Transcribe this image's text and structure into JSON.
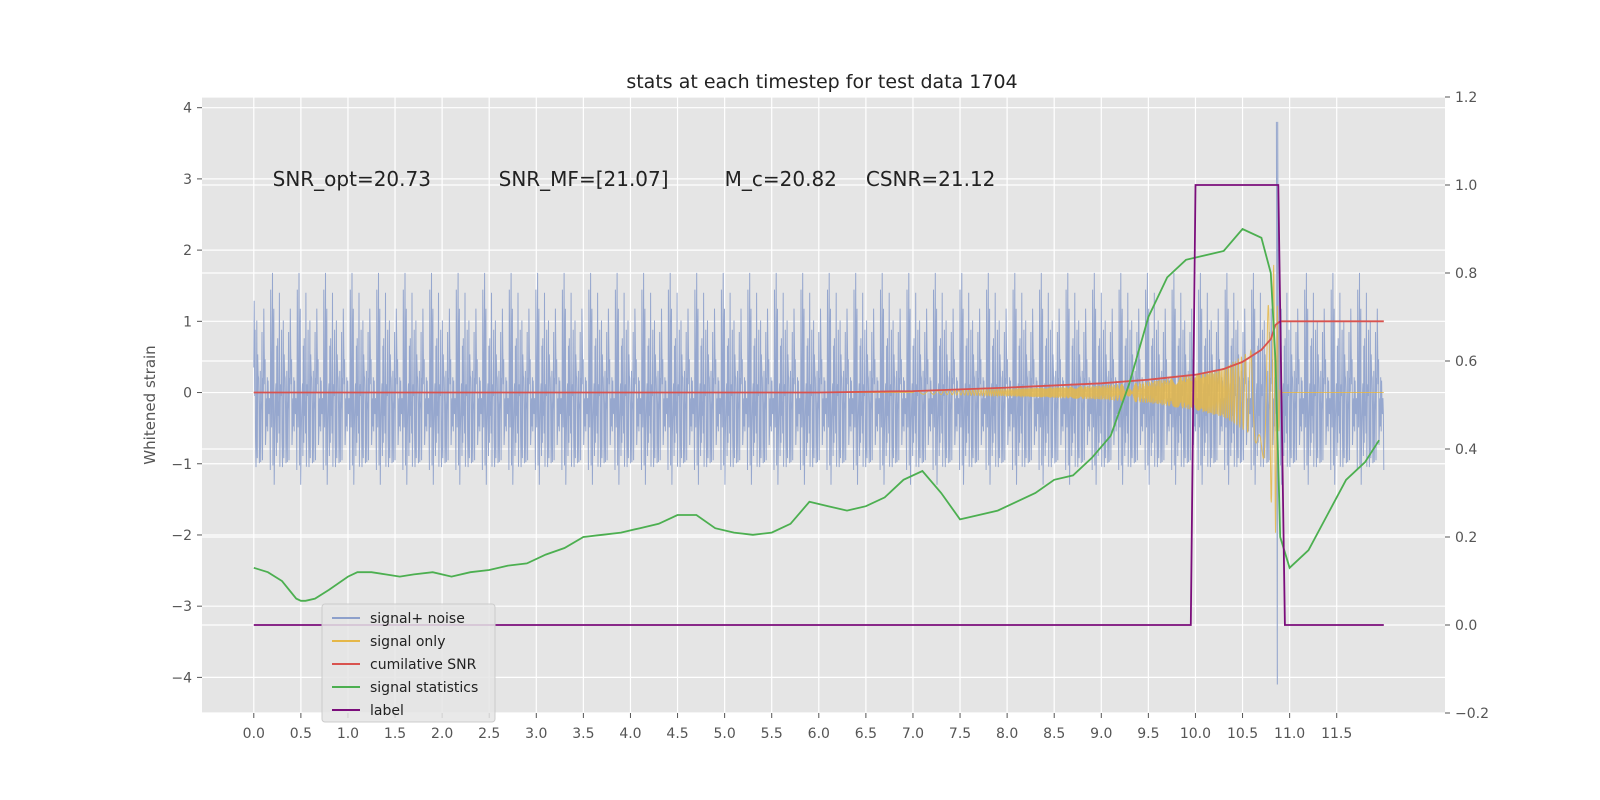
{
  "chart_data": {
    "type": "line",
    "title": "stats at each timestep for test data 1704",
    "ylabel": "Whitened strain",
    "xlabel": "",
    "xlim": [
      -0.55,
      12.65
    ],
    "ylim": [
      -4.5,
      4.15
    ],
    "y2lim": [
      -0.2,
      1.2
    ],
    "x_ticks": [
      "0.0",
      "0.5",
      "1.0",
      "1.5",
      "2.0",
      "2.5",
      "3.0",
      "3.5",
      "4.0",
      "4.5",
      "5.0",
      "5.5",
      "6.0",
      "6.5",
      "7.0",
      "7.5",
      "8.0",
      "8.5",
      "9.0",
      "9.5",
      "10.0",
      "10.5",
      "11.0",
      "11.5"
    ],
    "y_ticks": [
      4,
      3,
      2,
      1,
      0,
      -1,
      -2,
      -3,
      -4
    ],
    "y_tick_labels": [
      "4",
      "3",
      "2",
      "1",
      "0",
      "−1",
      "−2",
      "−3",
      "−4"
    ],
    "y2_ticks": [
      1.2,
      1.0,
      0.8,
      0.6,
      0.4,
      0.2,
      0.0,
      -0.2
    ],
    "y2_tick_labels": [
      "1.2",
      "1.0",
      "0.8",
      "0.6",
      "0.4",
      "0.2",
      "0.0",
      "−0.2"
    ],
    "grid": true,
    "legend_position": "lower-left",
    "annotations": [
      {
        "text": "SNR_opt=20.73",
        "x": 0.2,
        "y": 3.0
      },
      {
        "text": "SNR_MF=[21.07]",
        "x": 2.6,
        "y": 3.0
      },
      {
        "text": "M_c=20.82",
        "x": 5.0,
        "y": 3.0
      },
      {
        "text": "CSNR=21.12",
        "x": 6.5,
        "y": 3.0
      }
    ],
    "series": [
      {
        "name": "signal+ noise",
        "axis": "left",
        "color": "#8da0cb",
        "noise_band": [
          -1.6,
          1.6
        ],
        "max_peak": [
          10.87,
          3.8
        ],
        "min_peak": [
          10.87,
          -4.1
        ]
      },
      {
        "name": "signal only",
        "axis": "left",
        "color": "#e5b748",
        "envelope": [
          [
            7.0,
            0.02
          ],
          [
            8.0,
            0.05
          ],
          [
            9.0,
            0.1
          ],
          [
            9.5,
            0.15
          ],
          [
            10.0,
            0.25
          ],
          [
            10.3,
            0.35
          ],
          [
            10.6,
            0.6
          ],
          [
            10.75,
            1.0
          ],
          [
            10.85,
            2.0
          ],
          [
            10.9,
            0.0
          ]
        ]
      },
      {
        "name": "cumilative SNR",
        "axis": "left",
        "color": "#d9534f",
        "x": [
          0.0,
          6.0,
          7.0,
          8.0,
          9.0,
          9.5,
          10.0,
          10.3,
          10.5,
          10.7,
          10.8,
          10.85,
          10.9,
          12.0
        ],
        "y": [
          0.0,
          0.0,
          0.02,
          0.07,
          0.13,
          0.18,
          0.25,
          0.33,
          0.43,
          0.6,
          0.75,
          0.95,
          1.0,
          1.0
        ]
      },
      {
        "name": "signal statistics",
        "axis": "right",
        "color": "#4caf50",
        "x": [
          0.0,
          0.15,
          0.3,
          0.45,
          0.5,
          0.55,
          0.65,
          0.8,
          1.0,
          1.1,
          1.25,
          1.4,
          1.55,
          1.7,
          1.9,
          2.1,
          2.3,
          2.5,
          2.7,
          2.9,
          3.1,
          3.3,
          3.5,
          3.7,
          3.9,
          4.1,
          4.3,
          4.5,
          4.7,
          4.9,
          5.1,
          5.3,
          5.5,
          5.7,
          5.9,
          6.1,
          6.3,
          6.5,
          6.7,
          6.9,
          7.1,
          7.3,
          7.5,
          7.7,
          7.9,
          8.1,
          8.3,
          8.5,
          8.7,
          8.9,
          9.1,
          9.3,
          9.5,
          9.7,
          9.9,
          10.1,
          10.3,
          10.5,
          10.7,
          10.8,
          10.85,
          10.9,
          11.0,
          11.2,
          11.4,
          11.6,
          11.8,
          11.95
        ],
        "y": [
          0.13,
          0.12,
          0.1,
          0.06,
          0.055,
          0.055,
          0.06,
          0.08,
          0.11,
          0.12,
          0.12,
          0.115,
          0.11,
          0.115,
          0.12,
          0.11,
          0.12,
          0.125,
          0.135,
          0.14,
          0.16,
          0.175,
          0.2,
          0.205,
          0.21,
          0.22,
          0.23,
          0.25,
          0.25,
          0.22,
          0.21,
          0.205,
          0.21,
          0.23,
          0.28,
          0.27,
          0.26,
          0.27,
          0.29,
          0.33,
          0.35,
          0.3,
          0.24,
          0.25,
          0.26,
          0.28,
          0.3,
          0.33,
          0.34,
          0.38,
          0.43,
          0.55,
          0.7,
          0.79,
          0.83,
          0.84,
          0.85,
          0.9,
          0.88,
          0.8,
          0.6,
          0.2,
          0.13,
          0.17,
          0.25,
          0.33,
          0.37,
          0.42
        ]
      },
      {
        "name": "label",
        "axis": "right",
        "color": "#7b0d7b",
        "x": [
          0.0,
          9.95,
          10.0,
          10.88,
          10.95,
          12.0
        ],
        "y": [
          0.0,
          0.0,
          1.0,
          1.0,
          0.0,
          0.0
        ]
      }
    ]
  },
  "colors": {
    "plot_bg": "#e5e5e5",
    "grid": "#ffffff",
    "signal_noise": "#8da0cb",
    "signal_only": "#e5b748",
    "cumulative_snr": "#d9534f",
    "signal_statistics": "#4caf50",
    "label": "#7b0d7b"
  }
}
